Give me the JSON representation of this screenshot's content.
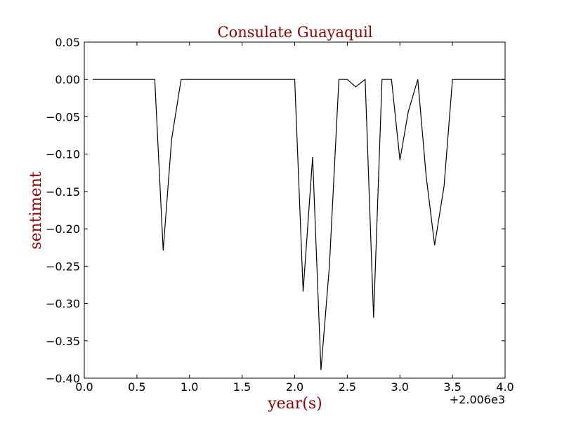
{
  "chart_data": {
    "type": "line",
    "title": "Consulate Guayaquil",
    "xlabel": "year(s)",
    "ylabel": "sentiment",
    "x_offset_label": "+2.006e3",
    "xlim": [
      0.0,
      4.0
    ],
    "ylim": [
      -0.4,
      0.05
    ],
    "x_ticks": [
      0.0,
      0.5,
      1.0,
      1.5,
      2.0,
      2.5,
      3.0,
      3.5,
      4.0
    ],
    "x_tick_labels": [
      "0.0",
      "0.5",
      "1.0",
      "1.5",
      "2.0",
      "2.5",
      "3.0",
      "3.5",
      "4.0"
    ],
    "y_ticks": [
      0.05,
      0.0,
      -0.05,
      -0.1,
      -0.15,
      -0.2,
      -0.25,
      -0.3,
      -0.35,
      -0.4
    ],
    "y_tick_labels": [
      "0.05",
      "0.00",
      "−0.05",
      "−0.10",
      "−0.15",
      "−0.20",
      "−0.25",
      "−0.30",
      "−0.35",
      "−0.40"
    ],
    "grid": false,
    "colors": {
      "line": "#000000",
      "title": "#8b0000",
      "labels": "#8b0000"
    },
    "series": [
      {
        "x": [
          0.08,
          0.17,
          0.25,
          0.33,
          0.42,
          0.5,
          0.58,
          0.67,
          0.75,
          0.83,
          0.92,
          1.0,
          1.08,
          1.17,
          1.25,
          1.33,
          1.42,
          1.5,
          1.58,
          1.67,
          1.75,
          1.83,
          1.92,
          2.0,
          2.08,
          2.17,
          2.25,
          2.33,
          2.42,
          2.5,
          2.58,
          2.67,
          2.75,
          2.83,
          2.92,
          3.0,
          3.08,
          3.17,
          3.25,
          3.33,
          3.42,
          3.5,
          3.58,
          3.67,
          3.75,
          3.83,
          3.92,
          4.0
        ],
        "y": [
          0.0,
          0.0,
          0.0,
          0.0,
          0.0,
          0.0,
          0.0,
          0.0,
          -0.229,
          -0.08,
          0.0,
          0.0,
          0.0,
          0.0,
          0.0,
          0.0,
          0.0,
          0.0,
          0.0,
          0.0,
          0.0,
          0.0,
          0.0,
          0.0,
          -0.284,
          -0.104,
          -0.389,
          -0.25,
          0.0,
          0.0,
          -0.01,
          0.0,
          -0.319,
          0.0,
          0.0,
          -0.108,
          -0.043,
          0.0,
          -0.13,
          -0.222,
          -0.143,
          0.0,
          0.0,
          0.0,
          0.0,
          0.0,
          0.0,
          0.0
        ]
      }
    ]
  }
}
